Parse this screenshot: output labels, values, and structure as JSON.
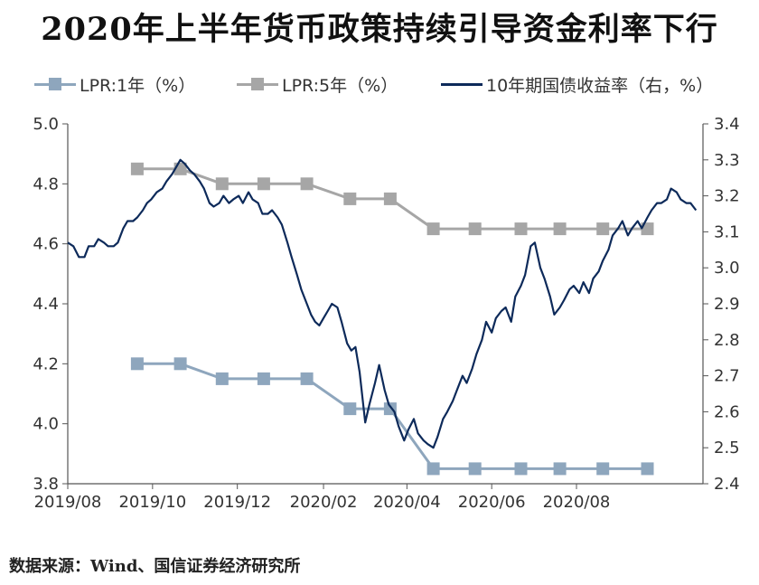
{
  "title": "2020年上半年货币政策持续引导资金利率下行",
  "source": "数据来源：Wind、国信证券经济研究所",
  "colors": {
    "lpr1": "#8ea6bd",
    "lpr5": "#a6a6a6",
    "bond": "#0d2a5a",
    "axis": "#555555"
  },
  "chart_data": {
    "type": "line",
    "x_ticks": [
      "2019/08",
      "2019/10",
      "2019/12",
      "2020/02",
      "2020/04",
      "2020/06",
      "2020/08"
    ],
    "y_left": {
      "range": [
        3.8,
        5.0
      ],
      "ticks": [
        "3.8",
        "4.0",
        "4.2",
        "4.4",
        "4.6",
        "4.8",
        "5.0"
      ]
    },
    "y_right": {
      "range": [
        2.4,
        3.4
      ],
      "ticks": [
        "2.4",
        "2.5",
        "2.6",
        "2.7",
        "2.8",
        "2.9",
        "3.0",
        "3.1",
        "3.2",
        "3.3",
        "3.4"
      ]
    },
    "grid": false,
    "legend_position": "top",
    "series": [
      {
        "name": "LPR:1年（%）",
        "axis": "left",
        "marker": "square",
        "points": [
          [
            "2019-08-20",
            4.25
          ],
          [
            "2019-09-20",
            4.2
          ],
          [
            "2019-10-21",
            4.2
          ],
          [
            "2019-11-20",
            4.15
          ],
          [
            "2019-12-20",
            4.15
          ],
          [
            "2020-01-20",
            4.15
          ],
          [
            "2020-02-20",
            4.05
          ],
          [
            "2020-03-20",
            4.05
          ],
          [
            "2020-04-20",
            3.85
          ],
          [
            "2020-05-20",
            3.85
          ],
          [
            "2020-06-22",
            3.85
          ],
          [
            "2020-07-20",
            3.85
          ],
          [
            "2020-08-20",
            3.85
          ],
          [
            "2020-09-21",
            3.85
          ]
        ]
      },
      {
        "name": "LPR:5年（%）",
        "axis": "left",
        "marker": "square",
        "points": [
          [
            "2019-08-20",
            4.85
          ],
          [
            "2019-09-20",
            4.85
          ],
          [
            "2019-10-21",
            4.85
          ],
          [
            "2019-11-20",
            4.8
          ],
          [
            "2019-12-20",
            4.8
          ],
          [
            "2020-01-20",
            4.8
          ],
          [
            "2020-02-20",
            4.75
          ],
          [
            "2020-03-20",
            4.75
          ],
          [
            "2020-04-20",
            4.65
          ],
          [
            "2020-05-20",
            4.65
          ],
          [
            "2020-06-22",
            4.65
          ],
          [
            "2020-07-20",
            4.65
          ],
          [
            "2020-08-20",
            4.65
          ],
          [
            "2020-09-21",
            4.65
          ]
        ]
      },
      {
        "name": "10年期国债收益率（右，%）",
        "axis": "right",
        "marker": "none",
        "points": [
          [
            "2019-08-01",
            3.07
          ],
          [
            "2019-08-05",
            3.06
          ],
          [
            "2019-08-09",
            3.03
          ],
          [
            "2019-08-13",
            3.03
          ],
          [
            "2019-08-16",
            3.06
          ],
          [
            "2019-08-20",
            3.06
          ],
          [
            "2019-08-23",
            3.08
          ],
          [
            "2019-08-27",
            3.07
          ],
          [
            "2019-08-30",
            3.06
          ],
          [
            "2019-09-03",
            3.06
          ],
          [
            "2019-09-06",
            3.07
          ],
          [
            "2019-09-10",
            3.11
          ],
          [
            "2019-09-13",
            3.13
          ],
          [
            "2019-09-17",
            3.13
          ],
          [
            "2019-09-20",
            3.14
          ],
          [
            "2019-09-24",
            3.16
          ],
          [
            "2019-09-27",
            3.18
          ],
          [
            "2019-09-30",
            3.19
          ],
          [
            "2019-10-04",
            3.21
          ],
          [
            "2019-10-08",
            3.22
          ],
          [
            "2019-10-11",
            3.24
          ],
          [
            "2019-10-15",
            3.26
          ],
          [
            "2019-10-18",
            3.28
          ],
          [
            "2019-10-21",
            3.3
          ],
          [
            "2019-10-24",
            3.29
          ],
          [
            "2019-10-28",
            3.27
          ],
          [
            "2019-10-31",
            3.26
          ],
          [
            "2019-11-04",
            3.24
          ],
          [
            "2019-11-07",
            3.22
          ],
          [
            "2019-11-11",
            3.18
          ],
          [
            "2019-11-14",
            3.17
          ],
          [
            "2019-11-18",
            3.18
          ],
          [
            "2019-11-21",
            3.2
          ],
          [
            "2019-11-25",
            3.18
          ],
          [
            "2019-11-28",
            3.19
          ],
          [
            "2019-12-02",
            3.2
          ],
          [
            "2019-12-05",
            3.18
          ],
          [
            "2019-12-09",
            3.21
          ],
          [
            "2019-12-12",
            3.19
          ],
          [
            "2019-12-16",
            3.18
          ],
          [
            "2019-12-19",
            3.15
          ],
          [
            "2019-12-23",
            3.15
          ],
          [
            "2019-12-26",
            3.16
          ],
          [
            "2019-12-30",
            3.14
          ],
          [
            "2020-01-02",
            3.12
          ],
          [
            "2020-01-06",
            3.07
          ],
          [
            "2020-01-09",
            3.03
          ],
          [
            "2020-01-13",
            2.98
          ],
          [
            "2020-01-16",
            2.94
          ],
          [
            "2020-01-20",
            2.9
          ],
          [
            "2020-01-23",
            2.87
          ],
          [
            "2020-01-26",
            2.85
          ],
          [
            "2020-01-29",
            2.84
          ],
          [
            "2020-02-01",
            2.86
          ],
          [
            "2020-02-04",
            2.88
          ],
          [
            "2020-02-07",
            2.9
          ],
          [
            "2020-02-11",
            2.89
          ],
          [
            "2020-02-14",
            2.85
          ],
          [
            "2020-02-18",
            2.79
          ],
          [
            "2020-02-21",
            2.77
          ],
          [
            "2020-02-24",
            2.78
          ],
          [
            "2020-02-27",
            2.71
          ],
          [
            "2020-03-02",
            2.57
          ],
          [
            "2020-03-05",
            2.62
          ],
          [
            "2020-03-09",
            2.68
          ],
          [
            "2020-03-12",
            2.73
          ],
          [
            "2020-03-16",
            2.66
          ],
          [
            "2020-03-19",
            2.62
          ],
          [
            "2020-03-23",
            2.6
          ],
          [
            "2020-03-26",
            2.56
          ],
          [
            "2020-03-30",
            2.52
          ],
          [
            "2020-04-02",
            2.55
          ],
          [
            "2020-04-06",
            2.58
          ],
          [
            "2020-04-09",
            2.54
          ],
          [
            "2020-04-13",
            2.52
          ],
          [
            "2020-04-16",
            2.51
          ],
          [
            "2020-04-20",
            2.5
          ],
          [
            "2020-04-23",
            2.53
          ],
          [
            "2020-04-27",
            2.58
          ],
          [
            "2020-04-30",
            2.6
          ],
          [
            "2020-05-04",
            2.63
          ],
          [
            "2020-05-07",
            2.66
          ],
          [
            "2020-05-11",
            2.7
          ],
          [
            "2020-05-14",
            2.68
          ],
          [
            "2020-05-18",
            2.72
          ],
          [
            "2020-05-21",
            2.76
          ],
          [
            "2020-05-25",
            2.8
          ],
          [
            "2020-05-28",
            2.85
          ],
          [
            "2020-06-01",
            2.82
          ],
          [
            "2020-06-04",
            2.86
          ],
          [
            "2020-06-08",
            2.88
          ],
          [
            "2020-06-11",
            2.89
          ],
          [
            "2020-06-15",
            2.85
          ],
          [
            "2020-06-18",
            2.92
          ],
          [
            "2020-06-22",
            2.95
          ],
          [
            "2020-06-25",
            2.98
          ],
          [
            "2020-06-29",
            3.06
          ],
          [
            "2020-07-02",
            3.07
          ],
          [
            "2020-07-06",
            3.0
          ],
          [
            "2020-07-09",
            2.97
          ],
          [
            "2020-07-13",
            2.92
          ],
          [
            "2020-07-16",
            2.87
          ],
          [
            "2020-07-20",
            2.89
          ],
          [
            "2020-07-23",
            2.91
          ],
          [
            "2020-07-27",
            2.94
          ],
          [
            "2020-07-30",
            2.95
          ],
          [
            "2020-08-03",
            2.93
          ],
          [
            "2020-08-06",
            2.96
          ],
          [
            "2020-08-10",
            2.93
          ],
          [
            "2020-08-13",
            2.97
          ],
          [
            "2020-08-17",
            2.99
          ],
          [
            "2020-08-20",
            3.02
          ],
          [
            "2020-08-24",
            3.05
          ],
          [
            "2020-08-27",
            3.09
          ],
          [
            "2020-08-31",
            3.11
          ],
          [
            "2020-09-03",
            3.13
          ],
          [
            "2020-09-07",
            3.09
          ],
          [
            "2020-09-10",
            3.11
          ],
          [
            "2020-09-14",
            3.13
          ],
          [
            "2020-09-17",
            3.11
          ],
          [
            "2020-09-21",
            3.14
          ],
          [
            "2020-09-24",
            3.16
          ],
          [
            "2020-09-28",
            3.18
          ],
          [
            "2020-10-01",
            3.18
          ],
          [
            "2020-10-05",
            3.19
          ],
          [
            "2020-10-08",
            3.22
          ],
          [
            "2020-10-12",
            3.21
          ],
          [
            "2020-10-15",
            3.19
          ],
          [
            "2020-10-19",
            3.18
          ],
          [
            "2020-10-22",
            3.18
          ],
          [
            "2020-10-26",
            3.16
          ]
        ]
      }
    ]
  }
}
